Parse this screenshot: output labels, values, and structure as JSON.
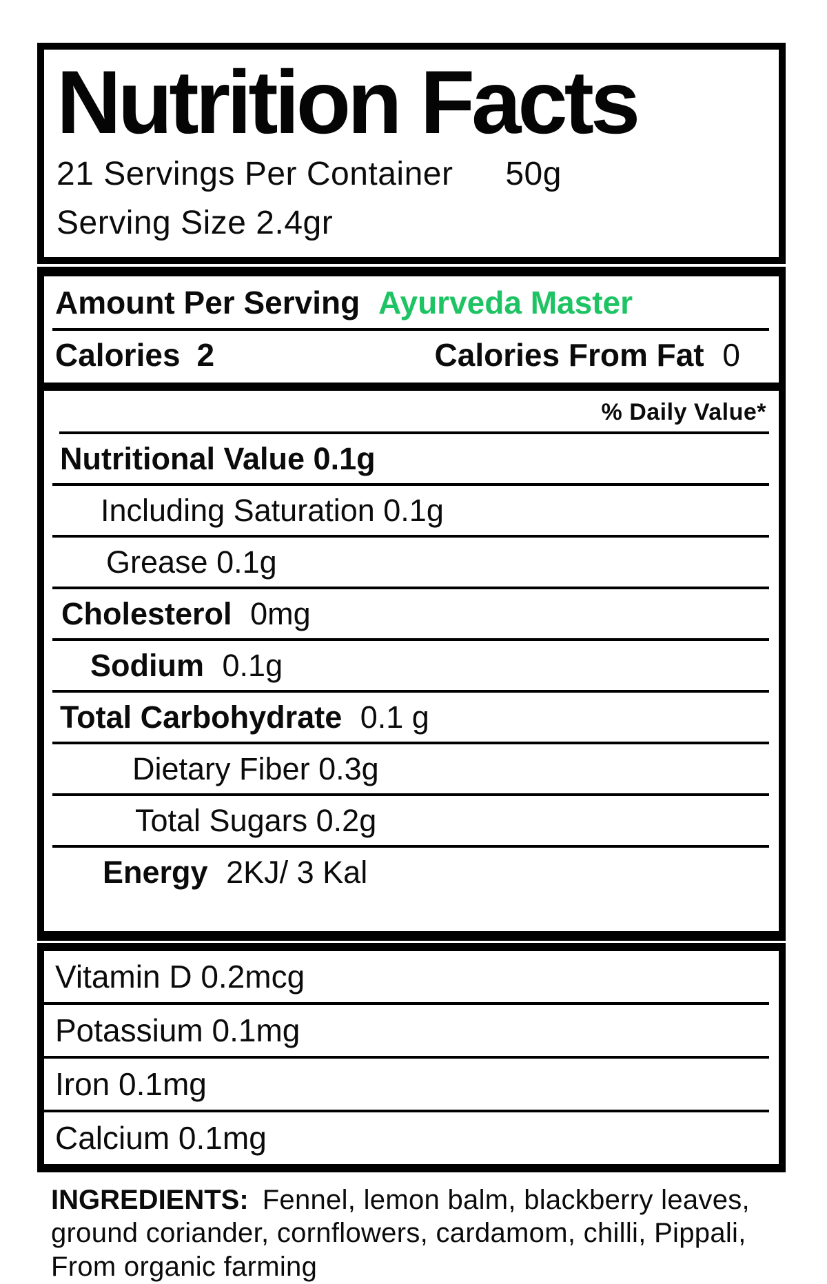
{
  "colors": {
    "accent_green": "#1ec364",
    "text": "#0b0b0b",
    "border": "#000000"
  },
  "header": {
    "title": "Nutrition Facts",
    "servings_per_container": "21 Servings Per Container",
    "container_weight": "50g",
    "serving_size": "Serving Size 2.4gr"
  },
  "main": {
    "amount_per_serving": "Amount Per Serving",
    "brand": "Ayurveda Master",
    "calories_label": "Calories",
    "calories_value": "2",
    "calories_from_fat_label": "Calories From Fat",
    "calories_from_fat_value": "0",
    "daily_value_header": "% Daily Value*",
    "nutrients": [
      {
        "text": "Nutritional Value 0.1g"
      },
      {
        "text": "Including Saturation 0.1g"
      },
      {
        "text": "Grease 0.1g"
      },
      {
        "label": "Cholesterol",
        "value": "0mg"
      },
      {
        "label": "Sodium",
        "value": "0.1g"
      },
      {
        "label": "Total Carbohydrate",
        "value": "0.1 g"
      },
      {
        "text": "Dietary Fiber 0.3g"
      },
      {
        "text": "Total Sugars 0.2g"
      },
      {
        "label": "Energy",
        "value": "2KJ/ 3 Kal"
      }
    ]
  },
  "minerals": [
    {
      "text": "Vitamin D 0.2mcg"
    },
    {
      "text": "Potassium 0.1mg"
    },
    {
      "text": "Iron 0.1mg"
    },
    {
      "text": "Calcium 0.1mg"
    }
  ],
  "ingredients": {
    "label": "INGREDIENTS:",
    "line1": "Fennel, lemon balm, blackberry leaves,",
    "line2": "ground coriander, cornflowers, cardamom, chilli, Pippali,",
    "line3": "From organic farming"
  }
}
